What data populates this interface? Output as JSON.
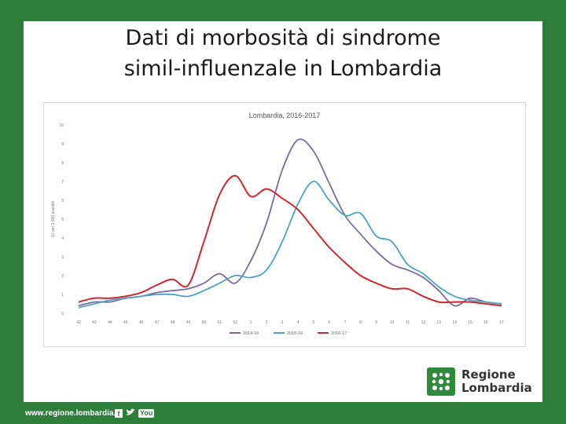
{
  "slide": {
    "title_line1": "Dati di morbosità di sindrome",
    "title_line2": "simil-influenzale in Lombardia"
  },
  "logo": {
    "line1": "Regione",
    "line2": "Lombardia",
    "icon": "regione-lombardia-rosa-camuna-icon"
  },
  "footer": {
    "url": "www.regione.lombardia.it",
    "social": {
      "facebook": "f",
      "twitter": "t",
      "youtube": "You"
    }
  },
  "chart_data": {
    "type": "line",
    "title": "Lombardia, 2016-2017",
    "xlabel": "",
    "ylabel": "ILI per 1.000 assistiti",
    "ylim": [
      0,
      10
    ],
    "yticks": [
      0,
      1,
      2,
      3,
      4,
      5,
      6,
      7,
      8,
      9,
      10
    ],
    "grid": false,
    "legend": "bottom",
    "categories": [
      "42",
      "43",
      "44",
      "45",
      "46",
      "47",
      "48",
      "49",
      "50",
      "51",
      "52",
      "1",
      "2",
      "3",
      "4",
      "5",
      "6",
      "7",
      "8",
      "9",
      "10",
      "11",
      "12",
      "13",
      "14",
      "15",
      "16",
      "17"
    ],
    "series": [
      {
        "name": "2014-15",
        "color": "#7b6a9a",
        "values": [
          0.4,
          0.6,
          0.6,
          0.8,
          0.9,
          1.1,
          1.2,
          1.3,
          1.6,
          2.1,
          1.6,
          2.8,
          4.8,
          7.6,
          9.2,
          8.6,
          6.9,
          5.2,
          4.2,
          3.3,
          2.6,
          2.3,
          1.9,
          1.2,
          0.4,
          0.8,
          0.6,
          0.5
        ]
      },
      {
        "name": "2015-16",
        "color": "#4ba3c3",
        "values": [
          0.3,
          0.5,
          0.7,
          0.8,
          0.9,
          1.0,
          1.0,
          0.9,
          1.2,
          1.6,
          2.0,
          1.9,
          2.3,
          3.8,
          5.8,
          7.0,
          6.0,
          5.2,
          5.3,
          4.1,
          3.8,
          2.6,
          2.1,
          1.4,
          0.9,
          0.7,
          0.6,
          0.5
        ]
      },
      {
        "name": "2016-17",
        "color": "#d0262d",
        "values": [
          0.6,
          0.8,
          0.8,
          0.9,
          1.1,
          1.5,
          1.8,
          1.5,
          3.8,
          6.3,
          7.3,
          6.2,
          6.6,
          6.1,
          5.5,
          4.5,
          3.5,
          2.7,
          2.0,
          1.6,
          1.3,
          1.3,
          0.9,
          0.6,
          0.6,
          0.6,
          0.5,
          0.4
        ]
      }
    ]
  }
}
